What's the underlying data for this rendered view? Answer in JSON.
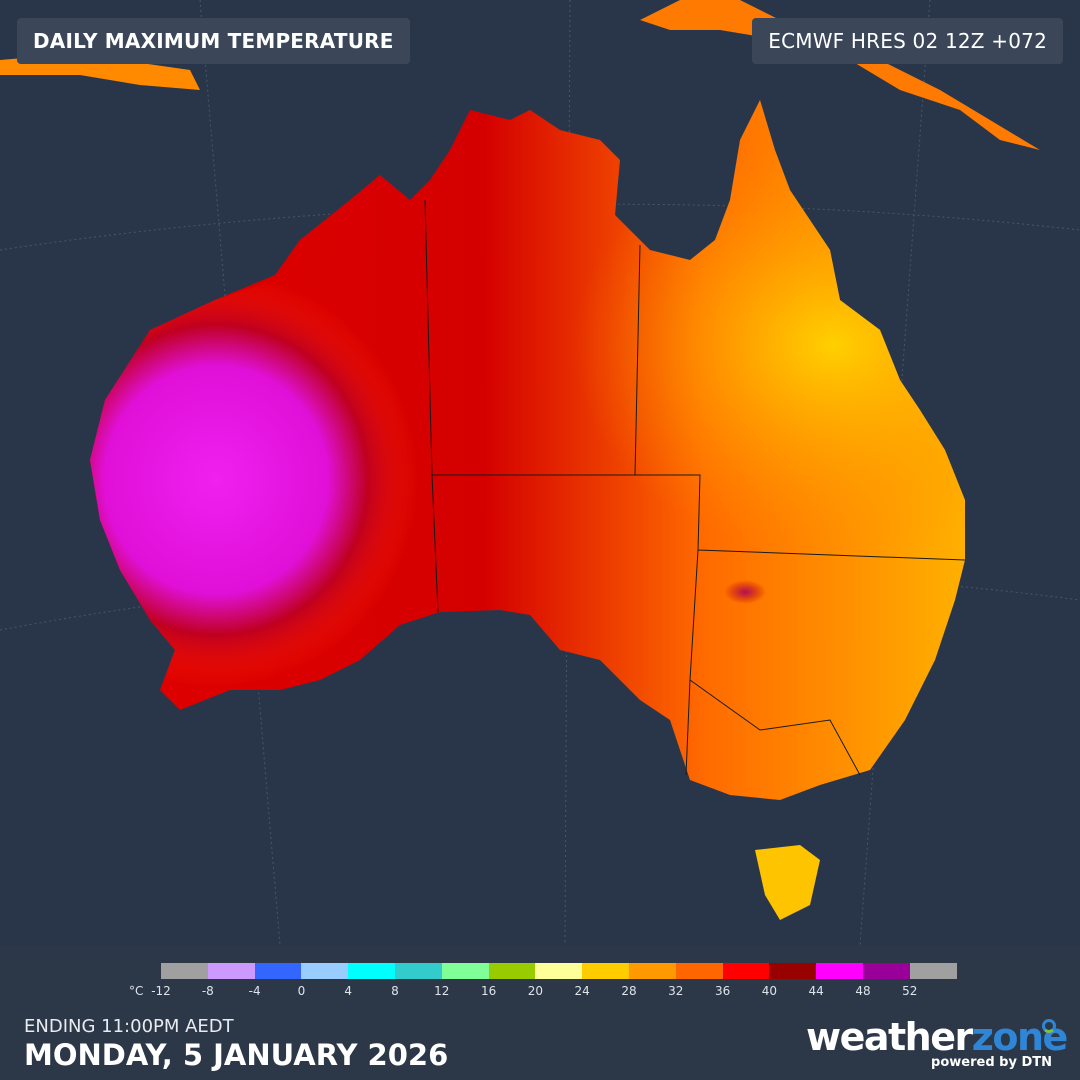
{
  "header": {
    "title": "DAILY MAXIMUM TEMPERATURE",
    "model": "ECMWF HRES 02 12Z +072"
  },
  "map": {
    "background_color": "#29364a",
    "region": "Australia"
  },
  "legend": {
    "unit": "°C",
    "ticks": [
      "-12",
      "-8",
      "-4",
      "0",
      "4",
      "8",
      "12",
      "16",
      "20",
      "24",
      "28",
      "32",
      "36",
      "40",
      "44",
      "48",
      "52"
    ],
    "colors": [
      "#a0a0a0",
      "#cc99ff",
      "#3366ff",
      "#99ccff",
      "#00ffff",
      "#33cccc",
      "#80ff99",
      "#99cc00",
      "#ffff99",
      "#ffcc00",
      "#ff9900",
      "#ff6600",
      "#ff0000",
      "#990000",
      "#ff00ff",
      "#990099",
      "#a0a0a0"
    ]
  },
  "footer": {
    "ending": "ENDING 11:00PM AEDT",
    "date": "MONDAY, 5 JANUARY 2026"
  },
  "logo": {
    "word1": "weather",
    "word2": "zone",
    "sub": "powered by DTN"
  }
}
